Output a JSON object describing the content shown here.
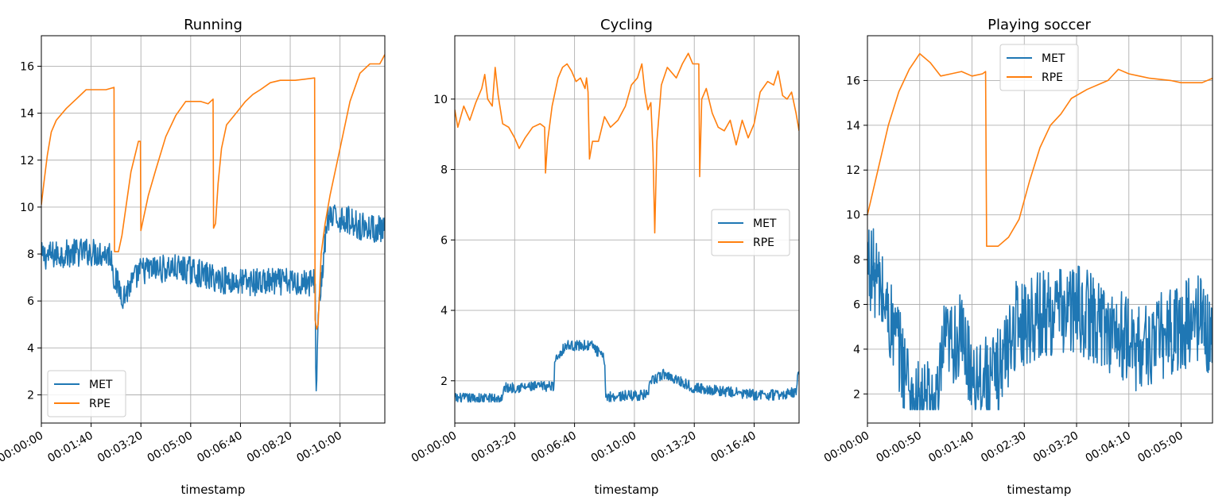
{
  "colors": {
    "MET": "#1f77b4",
    "RPE": "#ff7f0e",
    "grid": "#b0b0b0",
    "axis": "#000000"
  },
  "chart_data": [
    {
      "type": "line",
      "title": "Running",
      "xlabel": "timestamp",
      "ylabel": "",
      "grid": true,
      "legend": "lower-left",
      "xlim": [
        0,
        690
      ],
      "ylim": [
        0.8,
        17.3
      ],
      "xticks": [
        0,
        100,
        200,
        300,
        400,
        500,
        600
      ],
      "xtick_labels": [
        "00:00:00",
        "00:01:40",
        "00:03:20",
        "00:05:00",
        "00:06:40",
        "00:08:20",
        "00:10:00"
      ],
      "yticks": [
        2,
        4,
        6,
        8,
        10,
        12,
        14,
        16
      ],
      "ytick_labels": [
        "2",
        "4",
        "6",
        "8",
        "10",
        "12",
        "14",
        "16"
      ],
      "series": [
        {
          "name": "MET",
          "noise": 0.6,
          "knots": [
            [
              0,
              7.9
            ],
            [
              40,
              8.0
            ],
            [
              90,
              8.1
            ],
            [
              140,
              8.0
            ],
            [
              146,
              7.0
            ],
            [
              165,
              6.2
            ],
            [
              180,
              6.7
            ],
            [
              200,
              7.3
            ],
            [
              260,
              7.4
            ],
            [
              300,
              7.3
            ],
            [
              340,
              7.0
            ],
            [
              390,
              6.8
            ],
            [
              540,
              6.8
            ],
            [
              550,
              6.8
            ],
            [
              552,
              1.6
            ],
            [
              556,
              5.5
            ],
            [
              568,
              8.0
            ],
            [
              575,
              9.5
            ],
            [
              610,
              9.5
            ],
            [
              640,
              9.2
            ],
            [
              690,
              9.0
            ]
          ]
        },
        {
          "name": "RPE",
          "noise": 0,
          "knots": [
            [
              0,
              10.1
            ],
            [
              5,
              11.0
            ],
            [
              12,
              12.2
            ],
            [
              20,
              13.2
            ],
            [
              30,
              13.7
            ],
            [
              50,
              14.2
            ],
            [
              70,
              14.6
            ],
            [
              90,
              15.0
            ],
            [
              110,
              15.0
            ],
            [
              130,
              15.0
            ],
            [
              146,
              15.1
            ],
            [
              147,
              8.1
            ],
            [
              155,
              8.1
            ],
            [
              162,
              8.8
            ],
            [
              170,
              10.0
            ],
            [
              180,
              11.5
            ],
            [
              195,
              12.8
            ],
            [
              199,
              12.8
            ],
            [
              200,
              9.0
            ],
            [
              205,
              9.5
            ],
            [
              215,
              10.5
            ],
            [
              230,
              11.6
            ],
            [
              250,
              13.0
            ],
            [
              270,
              13.9
            ],
            [
              290,
              14.5
            ],
            [
              320,
              14.5
            ],
            [
              335,
              14.4
            ],
            [
              345,
              14.6
            ],
            [
              346,
              9.1
            ],
            [
              350,
              9.3
            ],
            [
              355,
              11.0
            ],
            [
              362,
              12.5
            ],
            [
              372,
              13.5
            ],
            [
              395,
              14.1
            ],
            [
              410,
              14.5
            ],
            [
              425,
              14.8
            ],
            [
              440,
              15.0
            ],
            [
              460,
              15.3
            ],
            [
              480,
              15.4
            ],
            [
              510,
              15.4
            ],
            [
              549,
              15.5
            ],
            [
              550,
              5.2
            ],
            [
              553,
              4.8
            ],
            [
              556,
              5.0
            ],
            [
              562,
              8.0
            ],
            [
              570,
              9.3
            ],
            [
              580,
              10.5
            ],
            [
              600,
              12.5
            ],
            [
              620,
              14.5
            ],
            [
              640,
              15.7
            ],
            [
              660,
              16.1
            ],
            [
              680,
              16.1
            ],
            [
              690,
              16.5
            ]
          ]
        }
      ]
    },
    {
      "type": "line",
      "title": "Cycling",
      "xlabel": "timestamp",
      "ylabel": "",
      "grid": true,
      "legend": "center-right",
      "xlim": [
        0,
        1150
      ],
      "ylim": [
        0.8,
        11.8
      ],
      "xticks": [
        0,
        200,
        400,
        600,
        800,
        1000
      ],
      "xtick_labels": [
        "00:00:00",
        "00:03:20",
        "00:06:40",
        "00:10:00",
        "00:13:20",
        "00:16:40"
      ],
      "yticks": [
        2,
        4,
        6,
        8,
        10
      ],
      "ytick_labels": [
        "2",
        "4",
        "6",
        "8",
        "10"
      ],
      "series": [
        {
          "name": "MET",
          "noise": 0.15,
          "knots": [
            [
              0,
              1.5
            ],
            [
              160,
              1.5
            ],
            [
              165,
              1.8
            ],
            [
              330,
              1.85
            ],
            [
              335,
              2.6
            ],
            [
              370,
              3.0
            ],
            [
              400,
              3.0
            ],
            [
              460,
              3.0
            ],
            [
              500,
              2.6
            ],
            [
              505,
              1.55
            ],
            [
              640,
              1.6
            ],
            [
              660,
              2.0
            ],
            [
              700,
              2.2
            ],
            [
              750,
              2.0
            ],
            [
              800,
              1.8
            ],
            [
              900,
              1.7
            ],
            [
              1000,
              1.6
            ],
            [
              1100,
              1.6
            ],
            [
              1140,
              1.7
            ],
            [
              1150,
              2.4
            ]
          ]
        },
        {
          "name": "RPE",
          "noise": 0,
          "knots": [
            [
              0,
              9.7
            ],
            [
              10,
              9.2
            ],
            [
              30,
              9.8
            ],
            [
              50,
              9.4
            ],
            [
              70,
              9.9
            ],
            [
              90,
              10.3
            ],
            [
              100,
              10.7
            ],
            [
              110,
              10.0
            ],
            [
              125,
              9.8
            ],
            [
              135,
              10.9
            ],
            [
              145,
              10.1
            ],
            [
              160,
              9.3
            ],
            [
              180,
              9.2
            ],
            [
              200,
              8.9
            ],
            [
              215,
              8.6
            ],
            [
              235,
              8.9
            ],
            [
              260,
              9.2
            ],
            [
              285,
              9.3
            ],
            [
              300,
              9.2
            ],
            [
              303,
              7.9
            ],
            [
              310,
              8.8
            ],
            [
              325,
              9.8
            ],
            [
              345,
              10.6
            ],
            [
              360,
              10.9
            ],
            [
              375,
              11.0
            ],
            [
              390,
              10.8
            ],
            [
              405,
              10.5
            ],
            [
              420,
              10.6
            ],
            [
              435,
              10.3
            ],
            [
              440,
              10.6
            ],
            [
              445,
              10.2
            ],
            [
              450,
              8.3
            ],
            [
              460,
              8.8
            ],
            [
              480,
              8.8
            ],
            [
              500,
              9.5
            ],
            [
              520,
              9.2
            ],
            [
              545,
              9.4
            ],
            [
              570,
              9.8
            ],
            [
              590,
              10.4
            ],
            [
              610,
              10.6
            ],
            [
              625,
              11.0
            ],
            [
              635,
              10.2
            ],
            [
              645,
              9.7
            ],
            [
              655,
              9.9
            ],
            [
              662,
              8.5
            ],
            [
              668,
              6.2
            ],
            [
              675,
              8.8
            ],
            [
              690,
              10.4
            ],
            [
              710,
              10.9
            ],
            [
              740,
              10.6
            ],
            [
              760,
              11.0
            ],
            [
              780,
              11.3
            ],
            [
              795,
              11.0
            ],
            [
              815,
              11.0
            ],
            [
              818,
              7.8
            ],
            [
              825,
              10.0
            ],
            [
              840,
              10.3
            ],
            [
              860,
              9.6
            ],
            [
              880,
              9.2
            ],
            [
              900,
              9.1
            ],
            [
              920,
              9.4
            ],
            [
              940,
              8.7
            ],
            [
              960,
              9.4
            ],
            [
              980,
              8.9
            ],
            [
              1000,
              9.3
            ],
            [
              1020,
              10.2
            ],
            [
              1045,
              10.5
            ],
            [
              1065,
              10.4
            ],
            [
              1080,
              10.8
            ],
            [
              1095,
              10.1
            ],
            [
              1110,
              10.0
            ],
            [
              1125,
              10.2
            ],
            [
              1140,
              9.6
            ],
            [
              1150,
              9.1
            ]
          ]
        }
      ]
    },
    {
      "type": "line",
      "title": "Playing soccer",
      "xlabel": "timestamp",
      "ylabel": "",
      "grid": true,
      "legend": "upper-center",
      "xlim": [
        0,
        330
      ],
      "ylim": [
        0.7,
        18.0
      ],
      "xticks": [
        0,
        50,
        100,
        150,
        200,
        250,
        300
      ],
      "xtick_labels": [
        "00:00:00",
        "00:00:50",
        "00:01:40",
        "00:02:30",
        "00:03:20",
        "00:04:10",
        "00:05:00"
      ],
      "yticks": [
        2,
        4,
        6,
        8,
        10,
        12,
        14,
        16
      ],
      "ytick_labels": [
        "2",
        "4",
        "6",
        "8",
        "10",
        "12",
        "14",
        "16"
      ],
      "series": [
        {
          "name": "MET",
          "noise": 2.0,
          "knots": [
            [
              0,
              8.0
            ],
            [
              10,
              7.0
            ],
            [
              20,
              5.5
            ],
            [
              30,
              4.0
            ],
            [
              40,
              2.5
            ],
            [
              45,
              1.5
            ],
            [
              68,
              1.5
            ],
            [
              72,
              4.0
            ],
            [
              90,
              4.5
            ],
            [
              100,
              3.0
            ],
            [
              120,
              2.5
            ],
            [
              130,
              3.5
            ],
            [
              140,
              5.0
            ],
            [
              160,
              5.5
            ],
            [
              200,
              5.8
            ],
            [
              230,
              5.0
            ],
            [
              260,
              4.0
            ],
            [
              280,
              4.5
            ],
            [
              300,
              5.0
            ],
            [
              320,
              5.5
            ],
            [
              330,
              4.0
            ]
          ]
        },
        {
          "name": "RPE",
          "noise": 0,
          "knots": [
            [
              0,
              10.0
            ],
            [
              5,
              11.0
            ],
            [
              10,
              12.0
            ],
            [
              20,
              14.0
            ],
            [
              30,
              15.5
            ],
            [
              40,
              16.5
            ],
            [
              50,
              17.2
            ],
            [
              60,
              16.8
            ],
            [
              70,
              16.2
            ],
            [
              80,
              16.3
            ],
            [
              90,
              16.4
            ],
            [
              100,
              16.2
            ],
            [
              110,
              16.3
            ],
            [
              113,
              16.4
            ],
            [
              114,
              8.6
            ],
            [
              125,
              8.6
            ],
            [
              135,
              9.0
            ],
            [
              145,
              9.8
            ],
            [
              155,
              11.5
            ],
            [
              165,
              13.0
            ],
            [
              175,
              14.0
            ],
            [
              185,
              14.5
            ],
            [
              195,
              15.2
            ],
            [
              210,
              15.6
            ],
            [
              230,
              16.0
            ],
            [
              240,
              16.5
            ],
            [
              250,
              16.3
            ],
            [
              260,
              16.2
            ],
            [
              270,
              16.1
            ],
            [
              290,
              16.0
            ],
            [
              300,
              15.9
            ],
            [
              320,
              15.9
            ],
            [
              330,
              16.1
            ]
          ]
        }
      ]
    }
  ]
}
